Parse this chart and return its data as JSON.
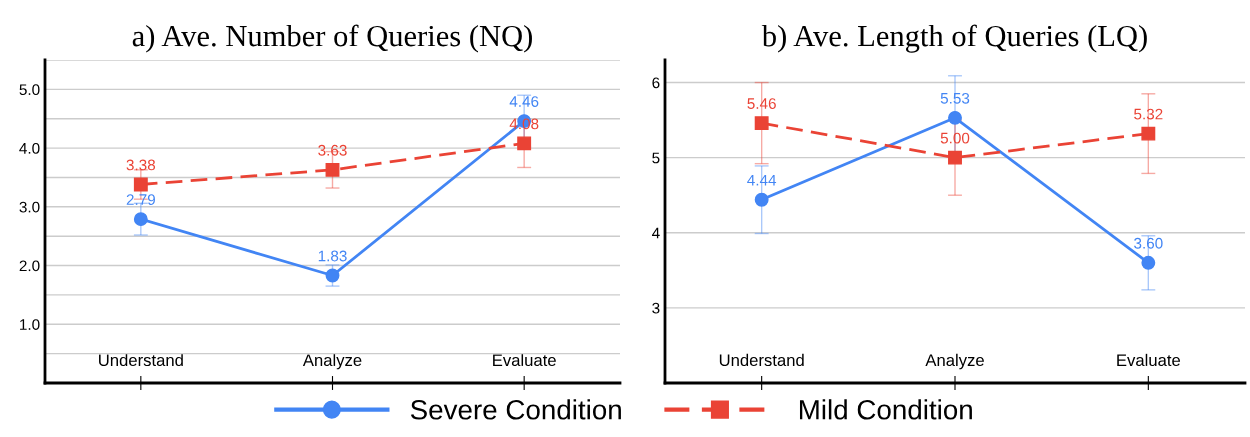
{
  "chart_data": [
    {
      "type": "line",
      "title": "a) Ave. Number of Queries (NQ)",
      "categories": [
        "Understand",
        "Analyze",
        "Evaluate"
      ],
      "ylim": [
        0,
        5.5
      ],
      "yticks": [
        {
          "value": 0.5,
          "label": null
        },
        {
          "value": 1.0,
          "label": "1.0"
        },
        {
          "value": 1.5,
          "label": null
        },
        {
          "value": 2.0,
          "label": "2.0"
        },
        {
          "value": 2.5,
          "label": null
        },
        {
          "value": 3.0,
          "label": "3.0"
        },
        {
          "value": 3.5,
          "label": null
        },
        {
          "value": 4.0,
          "label": "4.0"
        },
        {
          "value": 4.5,
          "label": null
        },
        {
          "value": 5.0,
          "label": "5.0"
        },
        {
          "value": 5.5,
          "label": null
        }
      ],
      "grid": "y",
      "legend": "bottom",
      "series": [
        {
          "name": "Severe Condition",
          "color": "#4285f4",
          "marker": "circle",
          "line_style": "solid",
          "values": [
            2.79,
            1.83,
            4.46
          ],
          "errors": [
            0.27,
            0.18,
            0.44
          ],
          "value_labels": [
            "2.79",
            "1.83",
            "4.46"
          ]
        },
        {
          "name": "Mild Condition",
          "color": "#ea4335",
          "marker": "square",
          "line_style": "dashed",
          "values": [
            3.38,
            3.63,
            4.08
          ],
          "errors": [
            0.25,
            0.31,
            0.41
          ],
          "value_labels": [
            "3.38",
            "3.63",
            "4.08"
          ]
        }
      ]
    },
    {
      "type": "line",
      "title": "b) Ave. Length of Queries (LQ)",
      "categories": [
        "Understand",
        "Analyze",
        "Evaluate"
      ],
      "ylim": [
        2,
        6.3
      ],
      "yticks": [
        3,
        4,
        5,
        6
      ],
      "grid": "y",
      "legend": "bottom",
      "series": [
        {
          "name": "Severe Condition",
          "color": "#4285f4",
          "marker": "circle",
          "line_style": "solid",
          "values": [
            4.44,
            5.53,
            3.6
          ],
          "errors": [
            0.45,
            0.56,
            0.36
          ],
          "value_labels": [
            "4.44",
            "5.53",
            "3.60"
          ]
        },
        {
          "name": "Mild Condition",
          "color": "#ea4335",
          "marker": "square",
          "line_style": "dashed",
          "values": [
            5.46,
            5.0,
            5.32
          ],
          "errors": [
            0.54,
            0.5,
            0.53
          ],
          "value_labels": [
            "5.46",
            "5.00",
            "5.32"
          ]
        }
      ]
    }
  ]
}
